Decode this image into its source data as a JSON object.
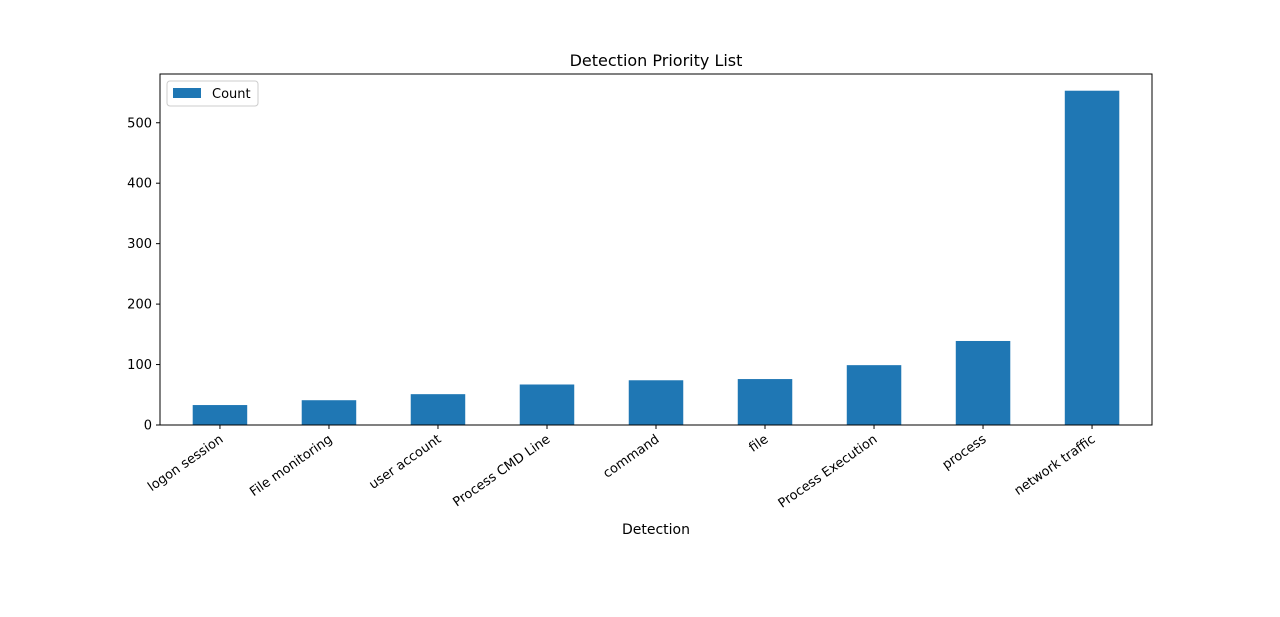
{
  "chart_data": {
    "type": "bar",
    "title": "Detection Priority List",
    "xlabel": "Detection",
    "ylabel": "",
    "categories": [
      "logon session",
      "File monitoring",
      "user account",
      "Process CMD Line",
      "command",
      "file",
      "Process Execution",
      "process",
      "network traffic"
    ],
    "series": [
      {
        "name": "Count",
        "values": [
          33,
          41,
          51,
          67,
          74,
          76,
          99,
          139,
          553
        ],
        "color": "#1f77b4"
      }
    ],
    "ylim": [
      0,
      580.65
    ],
    "yticks": [
      0,
      100,
      200,
      300,
      400,
      500
    ],
    "grid": false,
    "legend_position": "top-left"
  }
}
